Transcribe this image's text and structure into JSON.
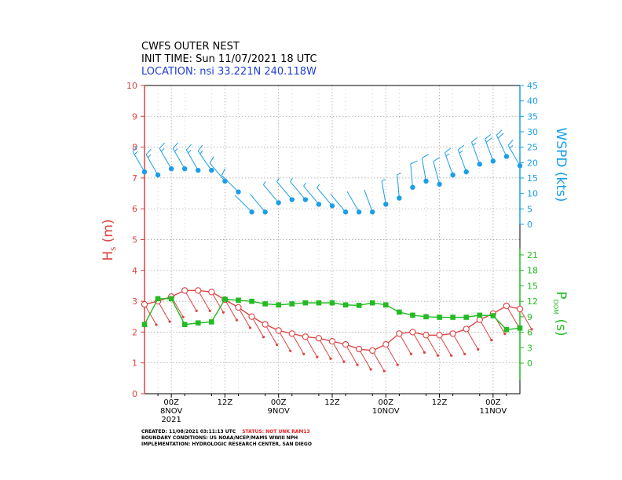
{
  "header": {
    "line1": "CWFS OUTER NEST",
    "line2": "INIT TIME: Sun 11/07/2021 18 UTC",
    "line3": "LOCATION: nsi 33.221N 240.118W"
  },
  "footer": {
    "created_prefix": "CREATED: 11/08/2021 03:11:13 UTC",
    "status": "STATUS: NOT UNK RAM13",
    "boundary": "BOUNDARY CONDITIONS: US NOAA/NCEP/MAMS WWIII NPH",
    "implementation": "IMPLEMENTATION: HYDROLOGIC RESEARCH CENTER, SAN DIEGO"
  },
  "colors": {
    "hs": "#dd4444",
    "wspd": "#1a9ee8",
    "pdom": "#22bb22",
    "location": "#1f3fd8",
    "status": "#ee2222",
    "grid": "#999999",
    "axis": "#000000"
  },
  "chart_data": {
    "type": "line",
    "x_unit": "hours since 2021-11-07 18 UTC",
    "xlim": [
      0,
      84
    ],
    "x_ticks": [
      {
        "hour": 6,
        "label1": "00Z",
        "label2": "8NOV",
        "label3": "2021"
      },
      {
        "hour": 18,
        "label1": "12Z",
        "label2": "",
        "label3": ""
      },
      {
        "hour": 30,
        "label1": "00Z",
        "label2": "9NOV",
        "label3": ""
      },
      {
        "hour": 42,
        "label1": "12Z",
        "label2": "",
        "label3": ""
      },
      {
        "hour": 54,
        "label1": "00Z",
        "label2": "10NOV",
        "label3": ""
      },
      {
        "hour": 66,
        "label1": "12Z",
        "label2": "",
        "label3": ""
      },
      {
        "hour": 78,
        "label1": "00Z",
        "label2": "11NOV",
        "label3": ""
      }
    ],
    "axes": {
      "hs": {
        "label_main": "H",
        "label_sub": "s",
        "label_unit": "(m)",
        "range": [
          0,
          10
        ],
        "ticks": [
          "0",
          "1",
          "2",
          "3",
          "4",
          "5",
          "6",
          "7",
          "8",
          "9",
          "10"
        ]
      },
      "wspd": {
        "label": "WSPD (kts)",
        "range": [
          0,
          45
        ],
        "ticks": [
          "0",
          "5",
          "10",
          "15",
          "20",
          "25",
          "30",
          "35",
          "40",
          "45"
        ]
      },
      "pdom": {
        "label_main": "P",
        "label_sub": "DOM",
        "label_unit": "(s)",
        "range": [
          0,
          21
        ],
        "ticks": [
          "0",
          "3",
          "6",
          "9",
          "12",
          "15",
          "18",
          "21"
        ]
      }
    },
    "grid": true,
    "series": [
      {
        "key": "hs",
        "x": [
          0,
          3,
          6,
          9,
          12,
          15,
          18,
          21,
          24,
          27,
          30,
          33,
          36,
          39,
          42,
          45,
          48,
          51,
          54,
          57,
          60,
          63,
          66,
          69,
          72,
          75,
          78,
          81,
          84
        ],
        "values": [
          2.9,
          3.0,
          3.15,
          3.35,
          3.35,
          3.3,
          3.05,
          2.8,
          2.5,
          2.25,
          2.05,
          1.95,
          1.85,
          1.8,
          1.7,
          1.6,
          1.45,
          1.4,
          1.6,
          1.95,
          2.0,
          1.9,
          1.9,
          1.95,
          2.1,
          2.4,
          2.6,
          2.85,
          2.75
        ],
        "dir_deg": [
          150,
          150,
          150,
          150,
          150,
          150,
          150,
          150,
          150,
          150,
          150,
          150,
          150,
          150,
          150,
          150,
          150,
          150,
          150,
          150,
          150,
          150,
          150,
          150,
          150,
          150,
          150,
          150,
          150
        ]
      },
      {
        "key": "wspd",
        "x": [
          0,
          3,
          6,
          9,
          12,
          15,
          18,
          21,
          24,
          27,
          30,
          33,
          36,
          39,
          42,
          45,
          48,
          51,
          54,
          57,
          60,
          63,
          66,
          69,
          72,
          75,
          78,
          81,
          84
        ],
        "values": [
          17,
          16,
          18,
          18,
          17.5,
          17.5,
          14,
          10.5,
          4,
          4,
          7,
          8,
          8,
          6.5,
          6,
          4,
          4,
          4,
          6.5,
          8.5,
          12,
          14,
          13,
          16,
          17,
          19.5,
          20.5,
          22,
          19
        ],
        "dir_deg": [
          330,
          330,
          330,
          330,
          330,
          325,
          320,
          315,
          315,
          320,
          320,
          320,
          320,
          320,
          320,
          320,
          330,
          340,
          350,
          355,
          355,
          350,
          345,
          340,
          340,
          340,
          340,
          335,
          330
        ]
      },
      {
        "key": "pdom",
        "x": [
          0,
          3,
          6,
          9,
          12,
          15,
          18,
          21,
          24,
          27,
          30,
          33,
          36,
          39,
          42,
          45,
          48,
          51,
          54,
          57,
          60,
          63,
          66,
          69,
          72,
          75,
          78,
          81,
          84
        ],
        "values": [
          7.5,
          12.5,
          12.5,
          7.5,
          7.8,
          8.0,
          12.4,
          12.2,
          12.0,
          11.5,
          11.3,
          11.5,
          11.7,
          11.7,
          11.7,
          11.3,
          11.2,
          11.7,
          11.3,
          9.9,
          9.3,
          9.0,
          8.9,
          8.9,
          8.9,
          9.3,
          9.2,
          6.5,
          6.8
        ]
      }
    ]
  }
}
